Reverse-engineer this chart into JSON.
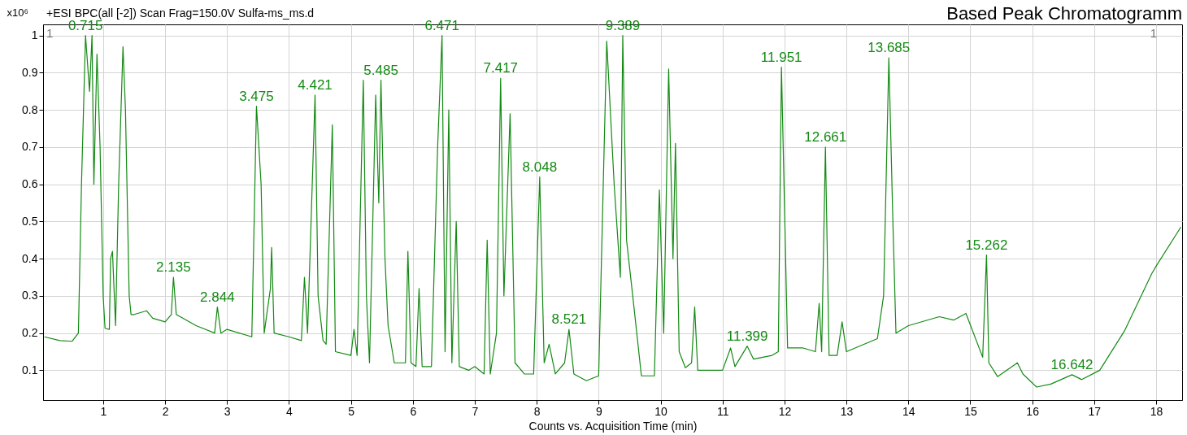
{
  "chart_data": {
    "type": "line",
    "title": "Based Peak Chromatogramm",
    "subtitle": "+ESI BPC(all [-2]) Scan Frag=150.0V Sulfa-ms_ms.d",
    "xlabel": "Counts vs. Acquisition Time (min)",
    "ylabel": "x10⁶",
    "series": [
      {
        "color": "#138a13",
        "x": [
          0.05,
          0.3,
          0.5,
          0.6,
          0.65,
          0.715,
          0.78,
          0.82,
          0.85,
          0.9,
          0.95,
          1.0,
          1.03,
          1.1,
          1.12,
          1.15,
          1.2,
          1.25,
          1.32,
          1.36,
          1.42,
          1.45,
          1.5,
          1.7,
          1.8,
          2.0,
          2.1,
          2.135,
          2.18,
          2.5,
          2.8,
          2.844,
          2.9,
          3.0,
          3.4,
          3.475,
          3.55,
          3.6,
          3.7,
          3.72,
          3.76,
          4.0,
          4.2,
          4.25,
          4.3,
          4.421,
          4.47,
          4.55,
          4.6,
          4.7,
          4.75,
          5.0,
          5.05,
          5.1,
          5.2,
          5.25,
          5.3,
          5.4,
          5.45,
          5.485,
          5.55,
          5.6,
          5.7,
          5.88,
          5.92,
          5.97,
          6.05,
          6.1,
          6.15,
          6.3,
          6.4,
          6.471,
          6.52,
          6.58,
          6.63,
          6.7,
          6.75,
          6.9,
          7.0,
          7.15,
          7.2,
          7.25,
          7.35,
          7.417,
          7.47,
          7.57,
          7.65,
          7.8,
          7.95,
          8.048,
          8.12,
          8.2,
          8.3,
          8.45,
          8.521,
          8.6,
          8.8,
          9.0,
          9.13,
          9.25,
          9.35,
          9.389,
          9.45,
          9.55,
          9.69,
          9.9,
          9.98,
          10.05,
          10.13,
          10.2,
          10.24,
          10.3,
          10.4,
          10.5,
          10.55,
          10.6,
          11.0,
          11.13,
          11.2,
          11.399,
          11.5,
          11.8,
          11.9,
          11.951,
          12.05,
          12.3,
          12.5,
          12.56,
          12.6,
          12.661,
          12.72,
          12.85,
          12.93,
          13.0,
          13.5,
          13.6,
          13.685,
          13.75,
          13.8,
          14.0,
          14.5,
          14.73,
          14.93,
          15.2,
          15.262,
          15.3,
          15.44,
          15.76,
          15.85,
          16.07,
          16.3,
          16.642,
          16.8,
          17.09,
          17.49,
          17.93,
          18.0,
          18.4
        ],
        "values": [
          0.19,
          0.18,
          0.178,
          0.2,
          0.6,
          1.0,
          0.85,
          1.0,
          0.6,
          0.95,
          0.7,
          0.3,
          0.213,
          0.21,
          0.4,
          0.42,
          0.22,
          0.6,
          0.97,
          0.8,
          0.3,
          0.25,
          0.25,
          0.26,
          0.24,
          0.23,
          0.25,
          0.35,
          0.25,
          0.22,
          0.2,
          0.27,
          0.2,
          0.21,
          0.19,
          0.81,
          0.6,
          0.2,
          0.32,
          0.43,
          0.2,
          0.19,
          0.18,
          0.35,
          0.2,
          0.84,
          0.3,
          0.18,
          0.17,
          0.76,
          0.15,
          0.14,
          0.21,
          0.14,
          0.88,
          0.3,
          0.12,
          0.84,
          0.55,
          0.88,
          0.4,
          0.22,
          0.12,
          0.12,
          0.42,
          0.12,
          0.11,
          0.32,
          0.11,
          0.11,
          0.7,
          1.0,
          0.15,
          0.8,
          0.12,
          0.5,
          0.11,
          0.1,
          0.11,
          0.09,
          0.45,
          0.09,
          0.2,
          0.885,
          0.3,
          0.79,
          0.12,
          0.09,
          0.09,
          0.62,
          0.12,
          0.17,
          0.09,
          0.12,
          0.21,
          0.09,
          0.072,
          0.085,
          0.985,
          0.6,
          0.35,
          1.0,
          0.45,
          0.3,
          0.085,
          0.085,
          0.585,
          0.2,
          0.91,
          0.4,
          0.71,
          0.15,
          0.107,
          0.12,
          0.27,
          0.1,
          0.1,
          0.16,
          0.11,
          0.165,
          0.13,
          0.14,
          0.15,
          0.915,
          0.16,
          0.16,
          0.15,
          0.28,
          0.15,
          0.7,
          0.14,
          0.14,
          0.23,
          0.15,
          0.185,
          0.3,
          0.94,
          0.5,
          0.2,
          0.22,
          0.244,
          0.235,
          0.253,
          0.135,
          0.41,
          0.12,
          0.083,
          0.12,
          0.09,
          0.055,
          0.063,
          0.088,
          0.075,
          0.1,
          0.206,
          0.36,
          0.38,
          0.485
        ]
      }
    ],
    "xlim": [
      0.03,
      18.42
    ],
    "ylim": [
      0.02,
      1.03
    ],
    "xticks": [
      1,
      2,
      3,
      4,
      5,
      6,
      7,
      8,
      9,
      10,
      11,
      12,
      13,
      14,
      15,
      16,
      17,
      18
    ],
    "yticks": [
      0.1,
      0.2,
      0.3,
      0.4,
      0.5,
      0.6,
      0.7,
      0.8,
      0.9,
      1
    ],
    "grid": true,
    "marker": "none",
    "line_style": "solid",
    "annotations": [
      "1",
      "1",
      {
        "text": "0.715",
        "x": 0.715,
        "y": 1.0
      },
      {
        "text": "2.135",
        "x": 2.135,
        "y": 0.35
      },
      {
        "text": "2.844",
        "x": 2.844,
        "y": 0.27
      },
      {
        "text": "3.475",
        "x": 3.475,
        "y": 0.81
      },
      {
        "text": "4.421",
        "x": 4.421,
        "y": 0.84
      },
      {
        "text": "5.485",
        "x": 5.485,
        "y": 0.88
      },
      {
        "text": "6.471",
        "x": 6.471,
        "y": 1.0
      },
      {
        "text": "7.417",
        "x": 7.417,
        "y": 0.885
      },
      {
        "text": "8.048",
        "x": 8.048,
        "y": 0.62
      },
      {
        "text": "8.521",
        "x": 8.521,
        "y": 0.21
      },
      {
        "text": "9.389",
        "x": 9.389,
        "y": 1.0
      },
      {
        "text": "11.399",
        "x": 11.399,
        "y": 0.165
      },
      {
        "text": "11.951",
        "x": 11.951,
        "y": 0.915
      },
      {
        "text": "12.661",
        "x": 12.661,
        "y": 0.7
      },
      {
        "text": "13.685",
        "x": 13.685,
        "y": 0.94
      },
      {
        "text": "15.262",
        "x": 15.262,
        "y": 0.41
      },
      {
        "text": "16.642",
        "x": 16.642,
        "y": 0.088
      }
    ]
  }
}
